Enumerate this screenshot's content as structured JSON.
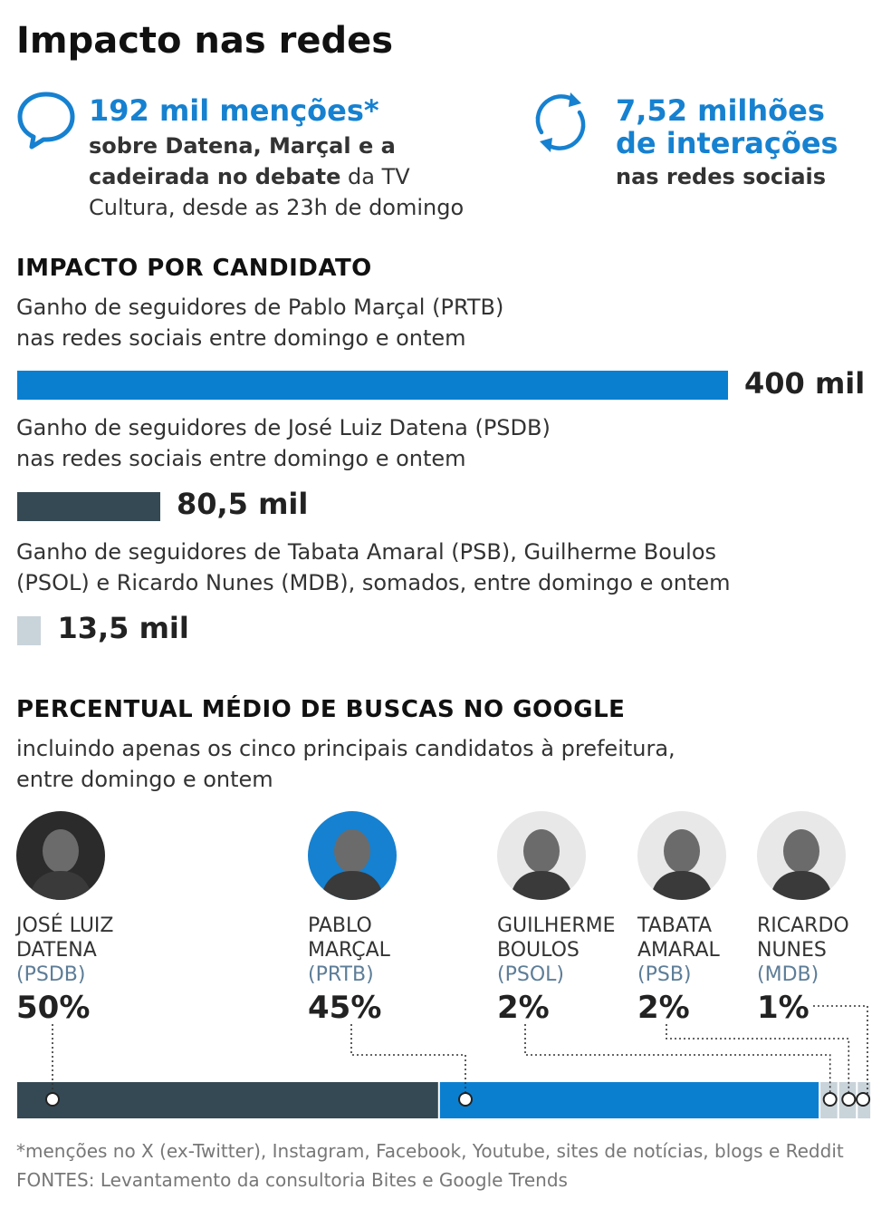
{
  "title": "Impacto nas redes",
  "stats": {
    "mentions": {
      "headline": "192 mil menções*",
      "line1": "sobre Datena, Marçal e a",
      "line2_bold": "cadeirada no debate",
      "line2_rest": " da TV",
      "line3": "Cultura, desde as 23h de domingo"
    },
    "interactions": {
      "headline1": "7,52 milhões",
      "headline2": "de interações",
      "line1": "nas redes sociais"
    }
  },
  "impact": {
    "heading": "IMPACTO POR CANDIDATO",
    "groups": [
      {
        "desc1": "Ganho de seguidores de Pablo Marçal (PRTB)",
        "desc2": "nas redes sociais entre domingo e ontem",
        "label": "400 mil",
        "value": 400,
        "color": "#0a7fd0"
      },
      {
        "desc1": "Ganho de seguidores de José Luiz Datena (PSDB)",
        "desc2": "nas redes sociais entre domingo e ontem",
        "label": "80,5 mil",
        "value": 80.5,
        "color": "#344954"
      },
      {
        "desc1": "Ganho de seguidores de Tabata Amaral (PSB), Guilherme Boulos",
        "desc2": "(PSOL) e Ricardo Nunes (MDB), somados, entre domingo e ontem",
        "label": "13,5 mil",
        "value": 13.5,
        "color": "#c9d3da"
      }
    ]
  },
  "google": {
    "heading": "PERCENTUAL MÉDIO DE BUSCAS NO GOOGLE",
    "desc1": "incluindo apenas os cinco principais candidatos à prefeitura,",
    "desc2": "entre domingo e ontem",
    "candidates": [
      {
        "name1": "JOSÉ LUIZ",
        "name2": "DATENA",
        "party": "(PSDB)",
        "pct_label": "50%",
        "value": 50,
        "color": "#344954",
        "avatar_bg": "#2b2b2b"
      },
      {
        "name1": "PABLO",
        "name2": "MARÇAL",
        "party": "(PRTB)",
        "pct_label": "45%",
        "value": 45,
        "color": "#0a7fd0",
        "avatar_bg": "#1681d0"
      },
      {
        "name1": "GUILHERME",
        "name2": "BOULOS",
        "party": "(PSOL)",
        "pct_label": "2%",
        "value": 2,
        "color": "#c9d3da",
        "avatar_bg": "#e8e8e8"
      },
      {
        "name1": "TABATA",
        "name2": "AMARAL",
        "party": "(PSB)",
        "pct_label": "2%",
        "value": 2,
        "color": "#c9d3da",
        "avatar_bg": "#e8e8e8"
      },
      {
        "name1": "RICARDO",
        "name2": "NUNES",
        "party": "(MDB)",
        "pct_label": "1%",
        "value": 1,
        "color": "#c9d3da",
        "avatar_bg": "#e8e8e8"
      }
    ]
  },
  "footnotes": {
    "note": "*menções no X (ex-Twitter), Instagram, Facebook, Youtube, sites de notícias, blogs e Reddit",
    "sources": "FONTES: Levantamento da consultoria Bites e Google Trends"
  },
  "colors": {
    "blue": "#1681d0",
    "dark": "#344954",
    "light": "#c9d3da"
  },
  "icons": [
    "speech-bubble-icon",
    "refresh-cycle-icon"
  ],
  "chart_data": [
    {
      "type": "bar",
      "categories": [
        "Pablo Marçal (PRTB)",
        "José Luiz Datena (PSDB)",
        "Tabata Amaral (PSB), Guilherme Boulos (PSOL) e Ricardo Nunes (MDB)"
      ],
      "values": [
        400,
        80.5,
        13.5
      ],
      "title": "IMPACTO POR CANDIDATO",
      "xlabel": "",
      "ylabel": "",
      "xlim": [
        0,
        400
      ]
    },
    {
      "type": "bar",
      "categories": [
        "JOSÉ LUIZ DATENA",
        "PABLO MARÇAL",
        "GUILHERME BOULOS",
        "TABATA AMARAL",
        "RICARDO NUNES"
      ],
      "values": [
        50,
        45,
        2,
        2,
        1
      ],
      "title": "PERCENTUAL MÉDIO DE BUSCAS NO GOOGLE",
      "xlabel": "",
      "ylabel": "",
      "xlim": [
        0,
        100
      ]
    }
  ]
}
